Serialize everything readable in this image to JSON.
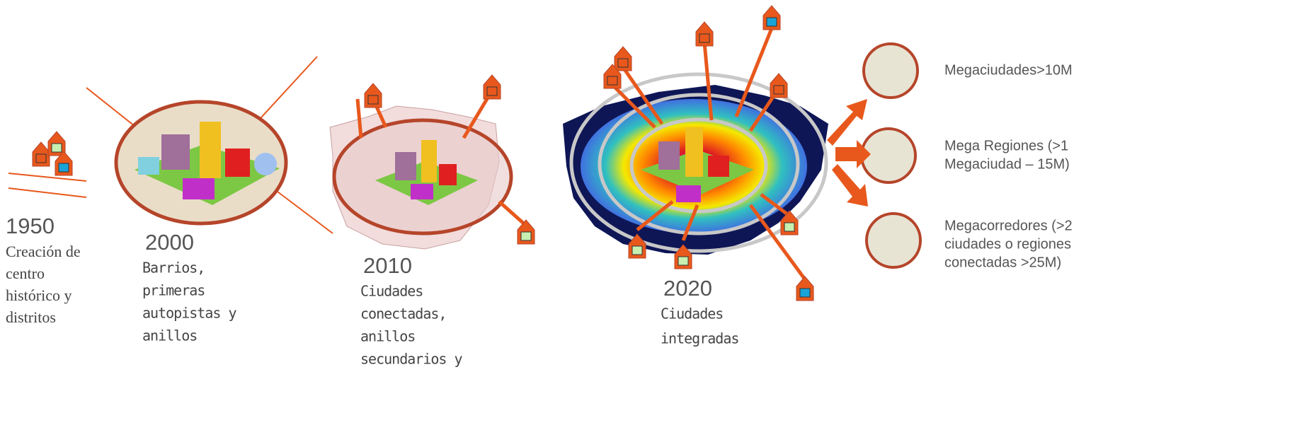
{
  "stages": [
    {
      "year": "1950",
      "description": [
        "Creación de",
        "centro",
        "histórico y",
        "distritos"
      ]
    },
    {
      "year": "2000",
      "description": [
        "Barrios,",
        "primeras",
        "autopistas y",
        "anillos"
      ]
    },
    {
      "year": "2010",
      "description": [
        "Ciudades",
        "conectadas,",
        "anillos",
        "secundarios y"
      ]
    },
    {
      "year": "2020",
      "description": [
        "Ciudades",
        "integradas"
      ]
    }
  ],
  "scales": [
    {
      "label": [
        "Megaciudades>10M"
      ]
    },
    {
      "label": [
        "Mega Regiones (>1",
        "Megaciudad – 15M)"
      ]
    },
    {
      "label": [
        "Megacorredores (>2",
        "ciudades o regiones",
        "conectadas >25M)"
      ]
    }
  ]
}
